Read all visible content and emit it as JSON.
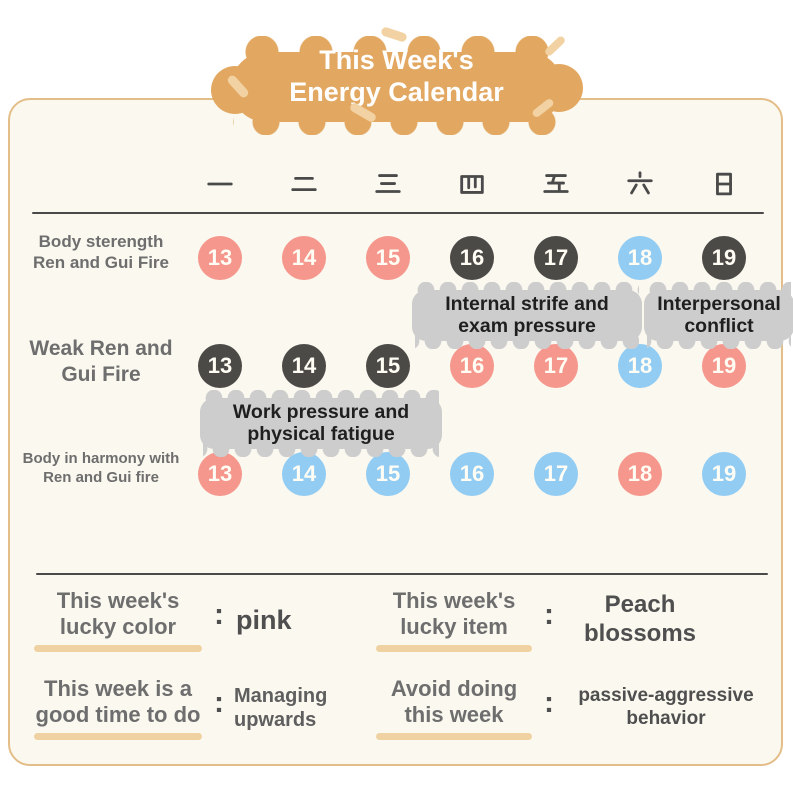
{
  "title": {
    "line1": "This Week's",
    "line2": "Energy Calendar"
  },
  "colors": {
    "pink": "#F5978C",
    "blue": "#92CCF3",
    "dark": "#4C4A47",
    "cloud_tan": "#E2A862",
    "card_bg": "#FAF8EF",
    "card_border": "#E4BE88",
    "annotation_gray": "#CDCDCD",
    "underline_tan": "#F0D2A2"
  },
  "calendar": {
    "day_headers": [
      "一",
      "二",
      "三",
      "四",
      "五",
      "六",
      "日"
    ],
    "rows": [
      {
        "label": [
          "Body sterength",
          "Ren and Gui Fire"
        ],
        "days": [
          {
            "num": "13",
            "color": "pink"
          },
          {
            "num": "14",
            "color": "pink"
          },
          {
            "num": "15",
            "color": "pink"
          },
          {
            "num": "16",
            "color": "dark"
          },
          {
            "num": "17",
            "color": "dark"
          },
          {
            "num": "18",
            "color": "blue"
          },
          {
            "num": "19",
            "color": "dark"
          }
        ]
      },
      {
        "label": [
          "Weak Ren and",
          "Gui Fire"
        ],
        "days": [
          {
            "num": "13",
            "color": "dark"
          },
          {
            "num": "14",
            "color": "dark"
          },
          {
            "num": "15",
            "color": "dark"
          },
          {
            "num": "16",
            "color": "pink"
          },
          {
            "num": "17",
            "color": "pink"
          },
          {
            "num": "18",
            "color": "blue"
          },
          {
            "num": "19",
            "color": "pink"
          }
        ]
      },
      {
        "label": [
          "Body in harmony with",
          "Ren and Gui fire"
        ],
        "days": [
          {
            "num": "13",
            "color": "pink"
          },
          {
            "num": "14",
            "color": "blue"
          },
          {
            "num": "15",
            "color": "blue"
          },
          {
            "num": "16",
            "color": "blue"
          },
          {
            "num": "17",
            "color": "blue"
          },
          {
            "num": "18",
            "color": "pink"
          },
          {
            "num": "19",
            "color": "blue"
          }
        ]
      }
    ],
    "annotations": [
      {
        "lines": [
          "Internal strife and",
          "exam pressure"
        ]
      },
      {
        "lines": [
          "Interpersonal",
          "conflict"
        ]
      },
      {
        "lines": [
          "Work pressure and",
          "physical fatigue"
        ]
      }
    ]
  },
  "info": {
    "items": [
      {
        "label": [
          "This week's",
          "lucky color"
        ],
        "value": "pink"
      },
      {
        "label": [
          "This week's",
          "lucky item"
        ],
        "value": "Peach blossoms"
      },
      {
        "label": [
          "This week is a",
          "good time to do"
        ],
        "value": "Managing upwards"
      },
      {
        "label": [
          "Avoid doing",
          "this week"
        ],
        "value": "passive-aggressive behavior"
      }
    ]
  }
}
